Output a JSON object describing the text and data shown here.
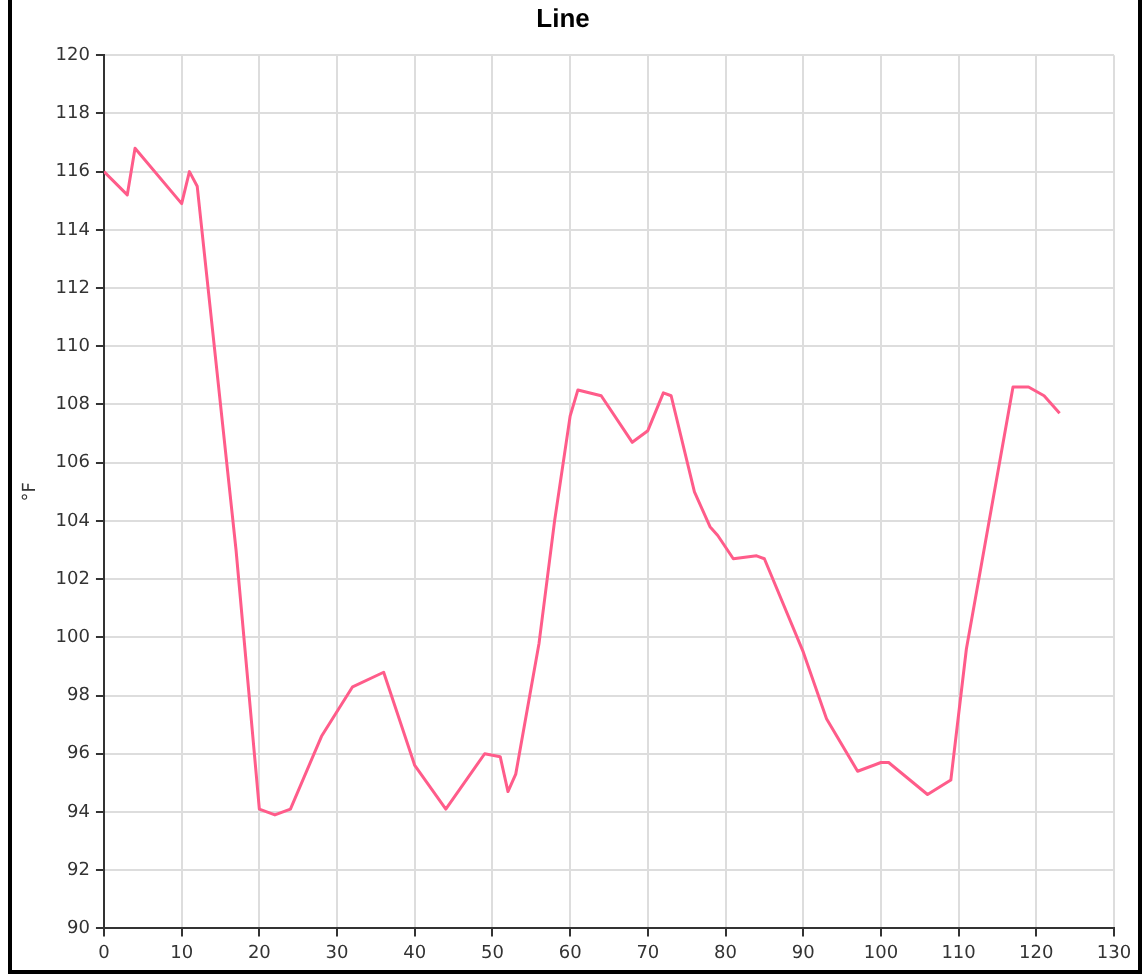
{
  "chart_data": {
    "type": "line",
    "title": "Line",
    "ylabel": "°F",
    "x": [
      0,
      3,
      4,
      10,
      11,
      12,
      17,
      20,
      22,
      24,
      28,
      32,
      36,
      40,
      44,
      49,
      51,
      52,
      53,
      56,
      58,
      60,
      61,
      64,
      68,
      70,
      72,
      73,
      76,
      78,
      79,
      81,
      84,
      85,
      90,
      93,
      97,
      100,
      101,
      106,
      109,
      111,
      113,
      117,
      119,
      121,
      123
    ],
    "series": [
      {
        "color": "#ff5c8a",
        "values": [
          116,
          115.2,
          116.8,
          114.9,
          116,
          115.5,
          103,
          94.1,
          93.9,
          94.1,
          96.6,
          98.3,
          98.8,
          95.6,
          94.1,
          96,
          95.9,
          94.7,
          95.3,
          99.8,
          104,
          107.6,
          108.5,
          108.3,
          106.7,
          107.1,
          108.4,
          108.3,
          105,
          103.8,
          103.5,
          102.7,
          102.8,
          102.7,
          99.5,
          97.2,
          95.4,
          95.7,
          95.7,
          94.6,
          95.1,
          99.6,
          102.6,
          108.6,
          108.6,
          108.3,
          107.7
        ]
      }
    ],
    "xlim": [
      0,
      130
    ],
    "xticks": [
      0,
      10,
      20,
      30,
      40,
      50,
      60,
      70,
      80,
      90,
      100,
      110,
      120,
      130
    ],
    "ylim": [
      90,
      120
    ],
    "yticks": [
      90,
      92,
      94,
      96,
      98,
      100,
      102,
      104,
      106,
      108,
      110,
      112,
      114,
      116,
      118,
      120
    ],
    "grid": true,
    "legend": false,
    "marker": "none",
    "line_style": "solid"
  }
}
